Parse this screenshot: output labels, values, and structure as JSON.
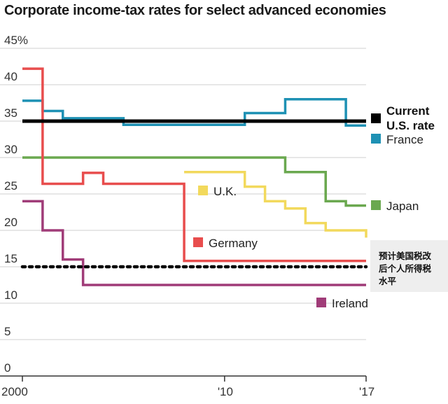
{
  "chart_data": {
    "type": "line",
    "title": "Corporate income-tax rates for select advanced economies",
    "xlabel": "",
    "ylabel": "",
    "xlim": [
      2000,
      2017
    ],
    "ylim": [
      0,
      45
    ],
    "y_ticks": [
      {
        "value": 45,
        "label": "45%"
      },
      {
        "value": 40,
        "label": "40"
      },
      {
        "value": 35,
        "label": "35"
      },
      {
        "value": 30,
        "label": "30"
      },
      {
        "value": 25,
        "label": "25"
      },
      {
        "value": 20,
        "label": "20"
      },
      {
        "value": 15,
        "label": "15"
      },
      {
        "value": 10,
        "label": "10"
      },
      {
        "value": 5,
        "label": "5"
      },
      {
        "value": 0,
        "label": "0"
      }
    ],
    "x_ticks": [
      {
        "value": 2000,
        "label": "2000"
      },
      {
        "value": 2010,
        "label": "'10"
      },
      {
        "value": 2017,
        "label": "'17"
      }
    ],
    "grid": true,
    "series": [
      {
        "name": "Current U.S. rate",
        "color": "#000000",
        "step": true,
        "points": [
          [
            2000,
            35
          ],
          [
            2017,
            35
          ]
        ]
      },
      {
        "name": "France",
        "color": "#1e91b4",
        "step": true,
        "points": [
          [
            2000,
            37.8
          ],
          [
            2001,
            36.4
          ],
          [
            2002,
            35.4
          ],
          [
            2005,
            34.5
          ],
          [
            2011,
            36.1
          ],
          [
            2013,
            38
          ],
          [
            2016,
            34.4
          ],
          [
            2017,
            34.4
          ]
        ]
      },
      {
        "name": "Japan",
        "color": "#6aa84f",
        "step": true,
        "points": [
          [
            2000,
            30
          ],
          [
            2013,
            28
          ],
          [
            2015,
            24
          ],
          [
            2016,
            23.4
          ],
          [
            2017,
            23.4
          ]
        ]
      },
      {
        "name": "U.K.",
        "color": "#f2d95c",
        "step": true,
        "points": [
          [
            2008,
            28
          ],
          [
            2011,
            26
          ],
          [
            2012,
            24
          ],
          [
            2013,
            23
          ],
          [
            2014,
            21
          ],
          [
            2015,
            20
          ],
          [
            2017,
            19
          ]
        ]
      },
      {
        "name": "Germany",
        "color": "#e84d4d",
        "step": true,
        "points": [
          [
            2000,
            42.2
          ],
          [
            2001,
            26.4
          ],
          [
            2003,
            27.9
          ],
          [
            2004,
            26.4
          ],
          [
            2008,
            15.8
          ],
          [
            2017,
            15.8
          ]
        ]
      },
      {
        "name": "Ireland",
        "color": "#a03c78",
        "step": true,
        "points": [
          [
            2000,
            24
          ],
          [
            2001,
            20
          ],
          [
            2002,
            16
          ],
          [
            2003,
            12.5
          ],
          [
            2017,
            12.5
          ]
        ]
      },
      {
        "name": "预计美国税改后个人所得税水平",
        "color": "#000000",
        "dashed": true,
        "step": true,
        "points": [
          [
            2000,
            15
          ],
          [
            2017,
            15
          ]
        ]
      }
    ],
    "legend": [
      {
        "label_lines": [
          "Current",
          "U.S. rate"
        ],
        "color": "#000000",
        "bold": true
      },
      {
        "label_lines": [
          "France"
        ],
        "color": "#1e91b4"
      },
      {
        "label_lines": [
          "Japan"
        ],
        "color": "#6aa84f"
      },
      {
        "label_lines": [
          "U.K."
        ],
        "color": "#f2d95c"
      },
      {
        "label_lines": [
          "Germany"
        ],
        "color": "#e84d4d"
      },
      {
        "label_lines": [
          "Ireland"
        ],
        "color": "#a03c78"
      }
    ],
    "annotation": {
      "lines": [
        "预计美国税改",
        "后个人所得税",
        "水平"
      ]
    }
  }
}
